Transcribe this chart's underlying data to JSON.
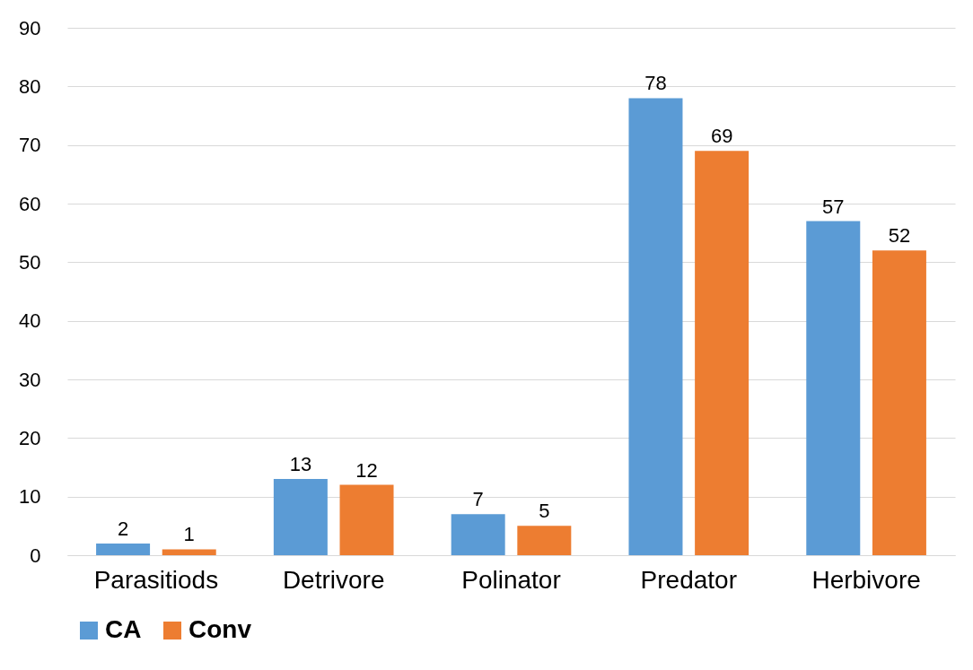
{
  "chart_data": {
    "type": "bar",
    "categories": [
      "Parasitiods",
      "Detrivore",
      "Polinator",
      "Predator",
      "Herbivore"
    ],
    "series": [
      {
        "name": "CA",
        "color": "#5b9bd5",
        "values": [
          2,
          13,
          7,
          78,
          57
        ]
      },
      {
        "name": "Conv",
        "color": "#ed7d31",
        "values": [
          1,
          12,
          5,
          69,
          52
        ]
      }
    ],
    "ylim": [
      0,
      90
    ],
    "yticks": [
      0,
      10,
      20,
      30,
      40,
      50,
      60,
      70,
      80,
      90
    ],
    "grid": "y",
    "legend": "bottom",
    "data_labels": true
  }
}
